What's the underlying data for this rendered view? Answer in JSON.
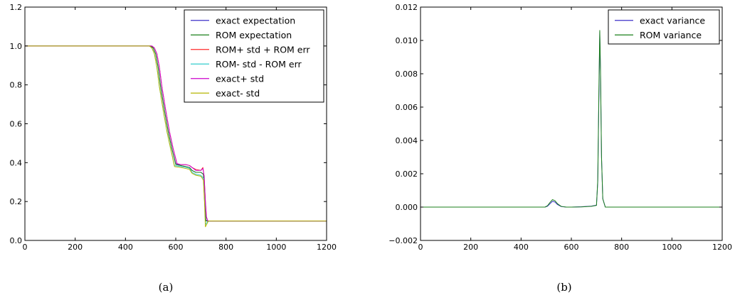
{
  "chart_data": [
    {
      "type": "line",
      "title": "",
      "xlabel": "",
      "ylabel": "",
      "caption": "(a)",
      "xlim": [
        0,
        1200
      ],
      "ylim": [
        0.0,
        1.2
      ],
      "xticks": [
        "0",
        "200",
        "400",
        "600",
        "800",
        "1000",
        "1200"
      ],
      "yticks": [
        "0.0",
        "0.2",
        "0.4",
        "0.6",
        "0.8",
        "1.0",
        "1.2"
      ],
      "grid": false,
      "legend_position": "top-right",
      "series": [
        {
          "name": "exact expectation",
          "color": "#3b2fc9",
          "x": [
            0,
            480,
            500,
            510,
            520,
            530,
            540,
            555,
            570,
            585,
            600,
            620,
            640,
            655,
            665,
            680,
            700,
            710,
            715,
            720,
            725,
            740,
            800,
            1200
          ],
          "y": [
            1.0,
            1.0,
            1.0,
            0.99,
            0.96,
            0.89,
            0.79,
            0.67,
            0.56,
            0.47,
            0.395,
            0.385,
            0.38,
            0.375,
            0.36,
            0.35,
            0.35,
            0.34,
            0.2,
            0.105,
            0.1,
            0.1,
            0.1,
            0.1
          ]
        },
        {
          "name": "ROM expectation",
          "color": "#1a7f1a",
          "x": [
            0,
            480,
            500,
            510,
            520,
            530,
            540,
            555,
            570,
            585,
            600,
            620,
            640,
            655,
            665,
            680,
            700,
            710,
            715,
            720,
            725,
            740,
            800,
            1200
          ],
          "y": [
            1.0,
            1.0,
            1.0,
            0.99,
            0.96,
            0.89,
            0.79,
            0.67,
            0.56,
            0.47,
            0.39,
            0.385,
            0.38,
            0.375,
            0.36,
            0.35,
            0.35,
            0.34,
            0.19,
            0.1,
            0.1,
            0.1,
            0.1,
            0.1
          ]
        },
        {
          "name": "ROM+ std + ROM err",
          "color": "#ff2a2a",
          "x": [
            0,
            485,
            505,
            515,
            525,
            535,
            545,
            560,
            575,
            590,
            605,
            620,
            640,
            655,
            665,
            680,
            700,
            708,
            713,
            718,
            722,
            728,
            740,
            800,
            1200
          ],
          "y": [
            1.0,
            1.0,
            1.0,
            0.99,
            0.96,
            0.89,
            0.79,
            0.67,
            0.56,
            0.47,
            0.395,
            0.39,
            0.39,
            0.385,
            0.375,
            0.365,
            0.36,
            0.375,
            0.33,
            0.2,
            0.12,
            0.1,
            0.1,
            0.1,
            0.1
          ]
        },
        {
          "name": "ROM- std - ROM err",
          "color": "#33cccc",
          "x": [
            0,
            475,
            495,
            505,
            515,
            525,
            535,
            550,
            565,
            580,
            595,
            620,
            640,
            655,
            665,
            680,
            700,
            710,
            715,
            718,
            722,
            730,
            740,
            800,
            1200
          ],
          "y": [
            1.0,
            1.0,
            1.0,
            0.99,
            0.96,
            0.89,
            0.79,
            0.67,
            0.56,
            0.47,
            0.385,
            0.38,
            0.375,
            0.37,
            0.35,
            0.34,
            0.335,
            0.32,
            0.2,
            0.08,
            0.09,
            0.1,
            0.1,
            0.1,
            0.1
          ]
        },
        {
          "name": "exact+ std",
          "color": "#cc00cc",
          "x": [
            0,
            485,
            505,
            515,
            525,
            535,
            545,
            560,
            575,
            590,
            605,
            620,
            640,
            655,
            665,
            680,
            700,
            708,
            713,
            718,
            722,
            728,
            740,
            800,
            1200
          ],
          "y": [
            1.0,
            1.0,
            1.0,
            0.99,
            0.96,
            0.89,
            0.79,
            0.67,
            0.56,
            0.47,
            0.395,
            0.39,
            0.39,
            0.385,
            0.375,
            0.36,
            0.36,
            0.37,
            0.33,
            0.2,
            0.12,
            0.1,
            0.1,
            0.1,
            0.1
          ]
        },
        {
          "name": "exact- std",
          "color": "#b5b500",
          "x": [
            0,
            475,
            495,
            505,
            515,
            525,
            535,
            550,
            565,
            580,
            595,
            620,
            640,
            655,
            665,
            680,
            700,
            710,
            715,
            718,
            722,
            730,
            740,
            800,
            1200
          ],
          "y": [
            1.0,
            1.0,
            1.0,
            0.99,
            0.96,
            0.89,
            0.79,
            0.67,
            0.56,
            0.47,
            0.38,
            0.375,
            0.37,
            0.365,
            0.345,
            0.335,
            0.33,
            0.31,
            0.18,
            0.07,
            0.08,
            0.1,
            0.1,
            0.1,
            0.1
          ]
        }
      ]
    },
    {
      "type": "line",
      "title": "",
      "xlabel": "",
      "ylabel": "",
      "caption": "(b)",
      "xlim": [
        0,
        1200
      ],
      "ylim": [
        -0.002,
        0.012
      ],
      "xticks": [
        "0",
        "200",
        "400",
        "600",
        "800",
        "1000",
        "1200"
      ],
      "yticks": [
        "−0.002",
        "0.000",
        "0.002",
        "0.004",
        "0.006",
        "0.008",
        "0.010",
        "0.012"
      ],
      "grid": false,
      "legend_position": "top-right",
      "series": [
        {
          "name": "exact variance",
          "color": "#3b2fc9",
          "x": [
            0,
            495,
            505,
            515,
            525,
            535,
            545,
            560,
            580,
            600,
            640,
            680,
            700,
            705,
            710,
            713,
            716,
            720,
            725,
            735,
            760,
            1200
          ],
          "y": [
            0.0,
            0.0,
            5e-05,
            0.0002,
            0.00035,
            0.0003,
            0.00015,
            3e-05,
            0.0,
            0.0,
            2e-05,
            6e-05,
            0.00012,
            0.0015,
            0.007,
            0.0105,
            0.008,
            0.003,
            0.0005,
            0.0,
            0.0,
            0.0
          ]
        },
        {
          "name": "ROM variance",
          "color": "#1a7f1a",
          "x": [
            0,
            495,
            505,
            515,
            525,
            535,
            545,
            560,
            580,
            600,
            640,
            680,
            700,
            705,
            710,
            713,
            716,
            720,
            725,
            735,
            760,
            1200
          ],
          "y": [
            0.0,
            0.0,
            8e-05,
            0.00028,
            0.00045,
            0.00038,
            0.0002,
            4e-05,
            0.0,
            0.0,
            1e-05,
            5e-05,
            0.0001,
            0.0016,
            0.0075,
            0.0106,
            0.0082,
            0.003,
            0.0005,
            0.0,
            0.0,
            0.0
          ]
        }
      ]
    }
  ]
}
